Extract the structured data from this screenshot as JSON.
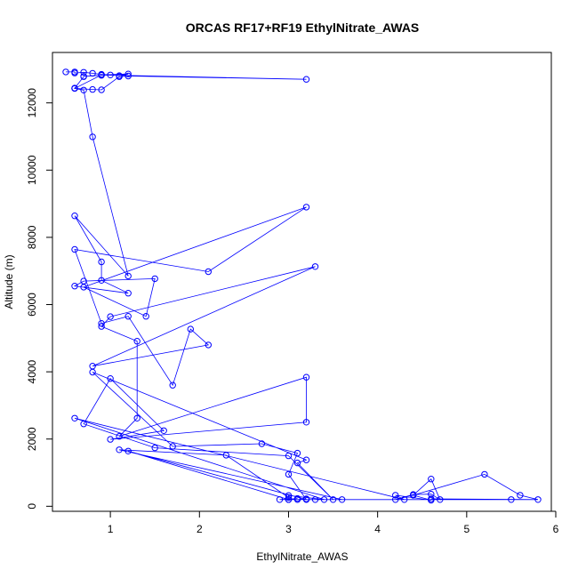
{
  "chart_data": {
    "type": "line",
    "title": "ORCAS RF17+RF19 EthylNitrate_AWAS",
    "xlabel": "EthylNitrate_AWAS",
    "ylabel": "Altitude (m)",
    "xlim": [
      0.35,
      5.95
    ],
    "ylim": [
      -150,
      13500
    ],
    "xticks": [
      1,
      2,
      3,
      4,
      5,
      6
    ],
    "yticks": [
      0,
      2000,
      4000,
      6000,
      8000,
      10000,
      12000
    ],
    "grid": false,
    "legend": "none",
    "marker": "open-circle",
    "color": "#0000ff",
    "series": [
      {
        "x": [
          0.5,
          0.6,
          0.6,
          0.7,
          0.8,
          0.9,
          1.0,
          1.1,
          1.2,
          0.9,
          0.9,
          0.7,
          0.7,
          0.6,
          0.6,
          0.8,
          0.9,
          1.1,
          1.2,
          3.2,
          0.9,
          0.6,
          0.7,
          0.8,
          1.2,
          0.6,
          0.9,
          0.9,
          1.2,
          0.6,
          0.7,
          1.5,
          1.4,
          0.7,
          3.2,
          2.1,
          0.6,
          0.9,
          1.2,
          1.7,
          1.9,
          2.1,
          0.8,
          3.3,
          1.0,
          0.9,
          1.3,
          1.3,
          1.1,
          3.2,
          3.2,
          1.0,
          1.6,
          1.0,
          0.7,
          1.5,
          3.0,
          3.5,
          3.1,
          3.2,
          0.8,
          1.7,
          2.7,
          3.1,
          3.0,
          3.2,
          1.2,
          3.0,
          3.0,
          3.3,
          3.6,
          1.1,
          2.3,
          3.0,
          3.0,
          3.4,
          0.6,
          4.3,
          4.2,
          4.6,
          4.4,
          4.2,
          4.4,
          4.6,
          4.7,
          4.6,
          4.4,
          5.2,
          5.6,
          5.8,
          4.6,
          5.5,
          3.0,
          3.1,
          2.9,
          3.1,
          3.2
        ],
        "y": [
          12920,
          12920,
          12890,
          12910,
          12880,
          12850,
          12830,
          12810,
          12860,
          12830,
          12820,
          12790,
          12780,
          12440,
          12430,
          12400,
          12390,
          12780,
          12800,
          12700,
          12830,
          12430,
          12380,
          10990,
          6850,
          8640,
          7270,
          6720,
          6340,
          6550,
          6700,
          6770,
          5650,
          6520,
          8900,
          6980,
          7640,
          5440,
          5650,
          3600,
          5270,
          4800,
          4170,
          7130,
          5640,
          5350,
          4910,
          2620,
          2080,
          3840,
          2500,
          1990,
          2250,
          3800,
          2450,
          1740,
          1500,
          200,
          1290,
          1380,
          3990,
          1780,
          1860,
          1580,
          950,
          200,
          1640,
          200,
          200,
          200,
          200,
          1680,
          1520,
          260,
          320,
          200,
          2620,
          200,
          330,
          180,
          330,
          200,
          350,
          360,
          200,
          810,
          330,
          950,
          330,
          200,
          220,
          200,
          200,
          230,
          200,
          200,
          220
        ]
      }
    ]
  }
}
